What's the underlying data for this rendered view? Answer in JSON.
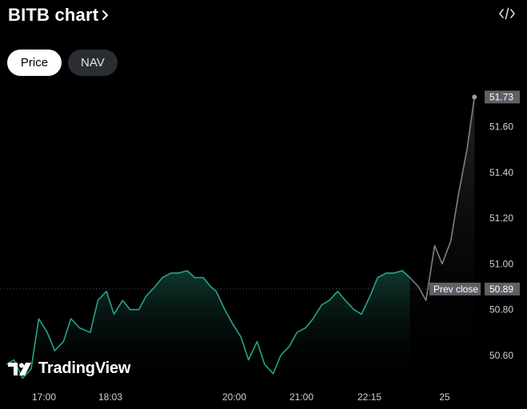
{
  "header": {
    "title": "BITB chart",
    "chevron_icon": "chevron-right-icon",
    "embed_icon": "code-embed-icon"
  },
  "tabs": [
    {
      "label": "Price",
      "active": true
    },
    {
      "label": "NAV",
      "active": false
    }
  ],
  "watermark": {
    "text": "TradingView",
    "icon": "tradingview-logo-icon"
  },
  "colors": {
    "line": "#26a48c",
    "after_hours_line": "#808080",
    "prev_close_badge": "#5e6066",
    "last_price_badge": "#5e6066",
    "background": "#000000"
  },
  "chart_data": {
    "type": "line",
    "title": "",
    "xlabel": "",
    "ylabel": "",
    "x_ticks": [
      "17:00",
      "18:03",
      "20:00",
      "21:00",
      "22:15",
      "25"
    ],
    "y_ticks": [
      "50.60",
      "50.80",
      "51.00",
      "51.20",
      "51.40",
      "51.60"
    ],
    "ylim": [
      50.47,
      51.77
    ],
    "grid": false,
    "prev_close": {
      "label": "Prev close",
      "value": 50.89,
      "value_label": "50.89"
    },
    "last_price": {
      "value": 51.73,
      "label": "51.73"
    },
    "series": [
      {
        "session": "regular",
        "x": [
          "16:45",
          "16:52",
          "17:00",
          "17:08",
          "17:15",
          "17:23",
          "17:30",
          "17:38",
          "17:45",
          "17:53",
          "18:03",
          "18:10",
          "18:18",
          "18:25",
          "18:33",
          "18:40",
          "18:48",
          "18:55",
          "19:03",
          "19:10",
          "19:18",
          "19:25",
          "19:33",
          "19:40",
          "19:48",
          "19:55",
          "20:00",
          "20:08",
          "20:15",
          "20:23",
          "20:30",
          "20:38",
          "20:45",
          "20:53",
          "21:00",
          "21:08",
          "21:15",
          "21:23",
          "21:30",
          "21:38",
          "21:45",
          "21:53",
          "22:00",
          "22:08",
          "22:15",
          "22:23",
          "22:30",
          "22:38",
          "22:45",
          "22:53",
          "23:00"
        ],
        "values": [
          50.56,
          50.58,
          50.5,
          50.54,
          50.76,
          50.7,
          50.62,
          50.66,
          50.76,
          50.72,
          50.7,
          50.84,
          50.88,
          50.78,
          50.84,
          50.8,
          50.8,
          50.86,
          50.9,
          50.94,
          50.96,
          50.96,
          50.97,
          50.94,
          50.94,
          50.9,
          50.88,
          50.8,
          50.74,
          50.68,
          50.58,
          50.66,
          50.56,
          50.52,
          50.6,
          50.64,
          50.7,
          50.72,
          50.76,
          50.82,
          50.84,
          50.88,
          50.84,
          50.8,
          50.78,
          50.86,
          50.94,
          50.96,
          50.96,
          50.97,
          50.94
        ]
      },
      {
        "session": "after-hours",
        "x": [
          "23:00",
          "23:08",
          "23:15",
          "23:23",
          "23:30",
          "23:38",
          "23:45",
          "23:53",
          "24:00"
        ],
        "values": [
          50.94,
          50.9,
          50.84,
          51.08,
          51.0,
          51.1,
          51.3,
          51.5,
          51.73
        ]
      }
    ]
  }
}
